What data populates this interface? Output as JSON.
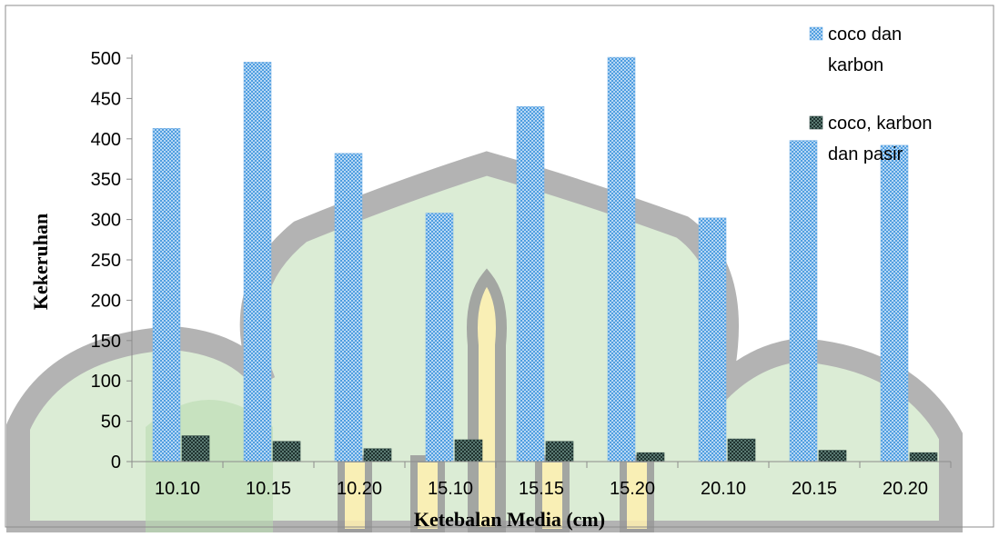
{
  "chart_data": {
    "type": "bar",
    "title": "",
    "xlabel": "Ketebalan Media (cm)",
    "ylabel": "Kekeruhan",
    "categories": [
      "10.10",
      "10.15",
      "10.20",
      "15.10",
      "15.15",
      "15.20",
      "20.10",
      "20.15",
      "20.20"
    ],
    "series": [
      {
        "name": "coco dan karbon",
        "legend_lines": [
          "coco dan",
          "karbon"
        ],
        "color": "#6aaee8",
        "values": [
          413,
          495,
          382,
          308,
          440,
          501,
          302,
          398,
          392
        ]
      },
      {
        "name": "coco, karbon dan pasir",
        "legend_lines": [
          "coco, karbon",
          "dan pasir"
        ],
        "color": "#3a5a54",
        "values": [
          32,
          25,
          16,
          27,
          25,
          11,
          28,
          14,
          11
        ]
      }
    ],
    "yticks": [
      0,
      50,
      100,
      150,
      200,
      250,
      300,
      350,
      400,
      450,
      500
    ],
    "ylim": [
      0,
      500
    ],
    "grid": false,
    "legend_position": "top-right"
  }
}
